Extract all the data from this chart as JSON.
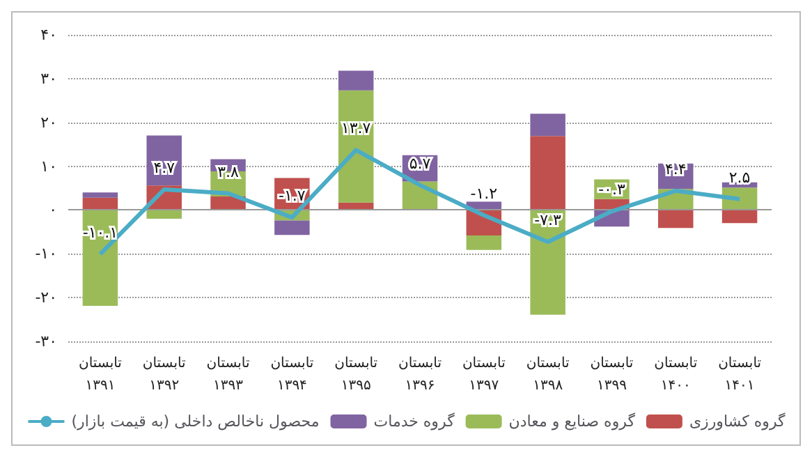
{
  "chart_data": {
    "type": "bar",
    "stacked": true,
    "categories": [
      "تابستان\n۱۳۹۱",
      "تابستان\n۱۳۹۲",
      "تابستان\n۱۳۹۳",
      "تابستان\n۱۳۹۴",
      "تابستان\n۱۳۹۵",
      "تابستان\n۱۳۹۶",
      "تابستان\n۱۳۹۷",
      "تابستان\n۱۳۹۸",
      "تابستان\n۱۳۹۹",
      "تابستان\n۱۴۰۰",
      "تابستان\n۱۴۰۱"
    ],
    "series": [
      {
        "name": "گروه کشاورزی",
        "color": "#c0504d",
        "values": [
          2.8,
          5.6,
          3.1,
          7.3,
          1.7,
          null,
          -5.8,
          16.9,
          2.5,
          -4.1,
          -3.0
        ]
      },
      {
        "name": "گروه صنایع و معادن",
        "color": "#9bbb59",
        "values": [
          -21.9,
          -2.0,
          5.7,
          -2.4,
          25.6,
          6.5,
          -3.3,
          -23.9,
          4.5,
          4.8,
          5.1
        ]
      },
      {
        "name": "گروه خدمات",
        "color": "#8064a2",
        "values": [
          1.2,
          11.4,
          2.8,
          -3.3,
          4.5,
          6.0,
          1.9,
          5.1,
          -3.8,
          5.8,
          1.2
        ]
      },
      {
        "name": "محصول ناخالص داخلی (به قیمت بازار)",
        "type": "line",
        "color": "#4bacc6",
        "values": [
          -10.1,
          4.7,
          3.8,
          -1.7,
          13.7,
          5.7,
          -1.2,
          -7.3,
          -0.3,
          4.4,
          2.5
        ],
        "value_labels": [
          "-۱۰.۱",
          "۴.۷",
          "۳.۸",
          "-۱.۷",
          "۱۳.۷",
          "۵.۷",
          "-۱.۲",
          "-۷.۳",
          "-۰.۳",
          "۴.۴",
          "۲.۵"
        ]
      }
    ],
    "ylim": [
      -30,
      40
    ],
    "yticks": [
      {
        "value": -30,
        "label": "-۳۰"
      },
      {
        "value": -20,
        "label": "-۲۰"
      },
      {
        "value": -10,
        "label": "-۱۰"
      },
      {
        "value": 0,
        "label": "۰"
      },
      {
        "value": 10,
        "label": "۱۰"
      },
      {
        "value": 20,
        "label": "۲۰"
      },
      {
        "value": 30,
        "label": "۳۰"
      },
      {
        "value": 40,
        "label": "۴۰"
      }
    ],
    "grid": "y",
    "legend": "bottom",
    "marker": "none"
  }
}
